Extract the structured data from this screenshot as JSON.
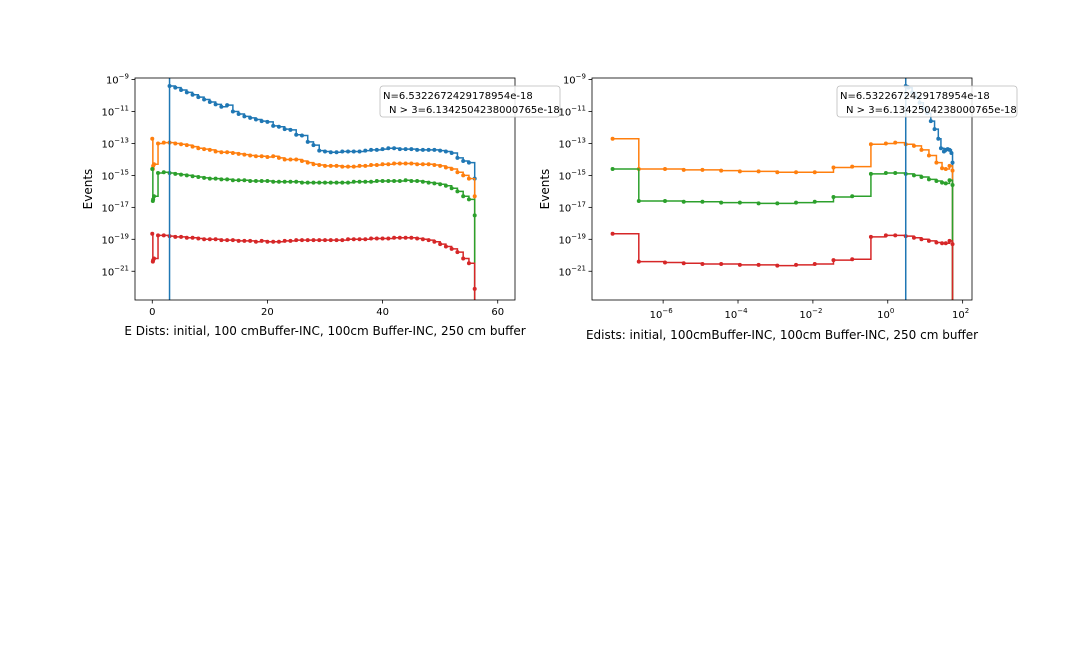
{
  "colors": {
    "blue": "#1f77b4",
    "orange": "#ff7f0e",
    "green": "#2ca02c",
    "red": "#d62728"
  },
  "chart_data": [
    {
      "type": "line",
      "xscale": "linear",
      "yscale": "log",
      "xlabel": "E Dists: initial, 100 cmBuffer-INC, 100cm Buffer-INC, 250 cm buffer",
      "ylabel": "Events",
      "xlim": [
        -3,
        63
      ],
      "ylim_exp": [
        -22.8,
        -8.9
      ],
      "xticks": [
        {
          "v": 0,
          "label": "0"
        },
        {
          "v": 20,
          "label": "20"
        },
        {
          "v": 40,
          "label": "40"
        },
        {
          "v": 60,
          "label": "60"
        }
      ],
      "yticks_exp": [
        -9,
        -11,
        -13,
        -15,
        -17,
        -19,
        -21
      ],
      "vline_x": 3,
      "legend": {
        "line1": "N=6.5322672429178954e-18",
        "line2": "N > 3=6.1342504238000765e-18",
        "placement": "top-right"
      },
      "series": [
        {
          "name": "initial",
          "color": "blue",
          "x": [
            3,
            4,
            5,
            6,
            7,
            8,
            9,
            10,
            11,
            12,
            13,
            14,
            15,
            16,
            17,
            18,
            19,
            20,
            21,
            22,
            23,
            24,
            25,
            26,
            27,
            28,
            29,
            30,
            31,
            32,
            33,
            34,
            35,
            36,
            37,
            38,
            39,
            40,
            41,
            42,
            43,
            44,
            45,
            46,
            47,
            48,
            49,
            50,
            51,
            52,
            53,
            54,
            55,
            56
          ],
          "logy": [
            -9.4,
            -9.5,
            -9.65,
            -9.8,
            -9.95,
            -10.1,
            -10.25,
            -10.4,
            -10.55,
            -10.7,
            -10.6,
            -11.0,
            -11.15,
            -11.3,
            -11.4,
            -11.5,
            -11.6,
            -11.65,
            -11.9,
            -11.95,
            -12.1,
            -12.15,
            -12.45,
            -12.5,
            -12.9,
            -13.1,
            -13.45,
            -13.5,
            -13.55,
            -13.55,
            -13.5,
            -13.5,
            -13.5,
            -13.5,
            -13.45,
            -13.4,
            -13.4,
            -13.35,
            -13.3,
            -13.3,
            -13.35,
            -13.35,
            -13.35,
            -13.4,
            -13.4,
            -13.4,
            -13.4,
            -13.45,
            -13.5,
            -13.6,
            -13.9,
            -14.1,
            -14.2,
            -15.2
          ]
        },
        {
          "name": "100 cmBuffer-INC",
          "color": "orange",
          "x": [
            0,
            0.1,
            0.15,
            0.3,
            1,
            2,
            3,
            4,
            5,
            6,
            7,
            8,
            9,
            10,
            11,
            12,
            13,
            14,
            15,
            16,
            17,
            18,
            19,
            20,
            21,
            22,
            23,
            24,
            25,
            26,
            27,
            28,
            29,
            30,
            31,
            32,
            33,
            34,
            35,
            36,
            37,
            38,
            39,
            40,
            41,
            42,
            43,
            44,
            45,
            46,
            47,
            48,
            49,
            50,
            51,
            52,
            53,
            54,
            55,
            56
          ],
          "logy": [
            -12.7,
            -14.6,
            -14.4,
            -14.3,
            -13.0,
            -12.95,
            -12.95,
            -13.0,
            -13.05,
            -13.1,
            -13.2,
            -13.3,
            -13.35,
            -13.4,
            -13.5,
            -13.55,
            -13.55,
            -13.6,
            -13.65,
            -13.7,
            -13.75,
            -13.8,
            -13.8,
            -13.85,
            -13.8,
            -13.9,
            -14.0,
            -14.0,
            -14.0,
            -14.1,
            -14.2,
            -14.3,
            -14.35,
            -14.4,
            -14.4,
            -14.4,
            -14.45,
            -14.45,
            -14.45,
            -14.4,
            -14.4,
            -14.35,
            -14.35,
            -14.3,
            -14.3,
            -14.25,
            -14.25,
            -14.25,
            -14.25,
            -14.3,
            -14.3,
            -14.3,
            -14.35,
            -14.4,
            -14.5,
            -14.6,
            -14.8,
            -15.0,
            -15.2,
            -16.3
          ]
        },
        {
          "name": "100cm Buffer-INC",
          "color": "green",
          "x": [
            0,
            0.1,
            0.15,
            0.3,
            1,
            2,
            3,
            4,
            5,
            6,
            7,
            8,
            9,
            10,
            11,
            12,
            13,
            14,
            15,
            16,
            17,
            18,
            19,
            20,
            21,
            22,
            23,
            24,
            25,
            26,
            27,
            28,
            29,
            30,
            31,
            32,
            33,
            34,
            35,
            36,
            37,
            38,
            39,
            40,
            41,
            42,
            43,
            44,
            45,
            46,
            47,
            48,
            49,
            50,
            51,
            52,
            53,
            54,
            55,
            56
          ],
          "logy": [
            -14.6,
            -16.6,
            -16.5,
            -16.3,
            -14.85,
            -14.8,
            -14.85,
            -14.9,
            -14.95,
            -15.0,
            -15.05,
            -15.1,
            -15.15,
            -15.2,
            -15.2,
            -15.25,
            -15.25,
            -15.3,
            -15.3,
            -15.3,
            -15.35,
            -15.35,
            -15.35,
            -15.35,
            -15.4,
            -15.4,
            -15.4,
            -15.4,
            -15.4,
            -15.45,
            -15.45,
            -15.45,
            -15.45,
            -15.45,
            -15.45,
            -15.45,
            -15.45,
            -15.45,
            -15.4,
            -15.4,
            -15.4,
            -15.4,
            -15.35,
            -15.35,
            -15.35,
            -15.35,
            -15.35,
            -15.3,
            -15.35,
            -15.35,
            -15.4,
            -15.45,
            -15.5,
            -15.55,
            -15.65,
            -15.8,
            -16.0,
            -16.3,
            -16.5,
            -17.5
          ]
        },
        {
          "name": "250 cm buffer",
          "color": "red",
          "x": [
            0,
            0.1,
            0.15,
            0.3,
            1,
            2,
            3,
            4,
            5,
            6,
            7,
            8,
            9,
            10,
            11,
            12,
            13,
            14,
            15,
            16,
            17,
            18,
            19,
            20,
            21,
            22,
            23,
            24,
            25,
            26,
            27,
            28,
            29,
            30,
            31,
            32,
            33,
            34,
            35,
            36,
            37,
            38,
            39,
            40,
            41,
            42,
            43,
            44,
            45,
            46,
            47,
            48,
            49,
            50,
            51,
            52,
            53,
            54,
            55,
            56
          ],
          "logy": [
            -18.65,
            -20.4,
            -20.3,
            -20.2,
            -18.75,
            -18.75,
            -18.8,
            -18.85,
            -18.85,
            -18.9,
            -18.9,
            -18.95,
            -19.0,
            -19.0,
            -19.0,
            -19.05,
            -19.05,
            -19.05,
            -19.1,
            -19.1,
            -19.1,
            -19.15,
            -19.1,
            -19.15,
            -19.15,
            -19.15,
            -19.1,
            -19.1,
            -19.05,
            -19.05,
            -19.05,
            -19.05,
            -19.05,
            -19.05,
            -19.05,
            -19.05,
            -19.05,
            -19.0,
            -19.0,
            -19.0,
            -19.0,
            -18.95,
            -18.95,
            -18.95,
            -18.95,
            -18.9,
            -18.9,
            -18.9,
            -18.9,
            -18.95,
            -19.0,
            -19.05,
            -19.15,
            -19.3,
            -19.45,
            -19.6,
            -19.8,
            -20.2,
            -20.5,
            -22.1
          ]
        }
      ]
    },
    {
      "type": "line",
      "xscale": "log",
      "yscale": "log",
      "xlabel": "Edists: initial, 100cmBuffer-INC, 100cm Buffer-INC, 250 cm buffer",
      "ylabel": "Events",
      "xlim_exp": [
        -7.9,
        2.25
      ],
      "ylim_exp": [
        -22.8,
        -8.9
      ],
      "xticks_exp": [
        {
          "e": -6,
          "label": "10−6"
        },
        {
          "e": -4,
          "label": "10−4"
        },
        {
          "e": -2,
          "label": "10−2"
        },
        {
          "e": 0,
          "label": "100"
        },
        {
          "e": 2,
          "label": "102"
        }
      ],
      "yticks_exp": [
        -9,
        -11,
        -13,
        -15,
        -17,
        -19,
        -21
      ],
      "vline_logx": 0.48,
      "legend": {
        "line1": "N=6.5322672429178954e-18",
        "line2": "N > 3=6.1342504238000765e-18",
        "placement": "top-right"
      },
      "series": [
        {
          "name": "initial",
          "color": "blue",
          "logx": [
            0.48,
            0.55,
            0.65,
            0.75,
            0.85,
            0.95,
            1.05,
            1.15,
            1.25,
            1.35,
            1.42,
            1.5,
            1.55,
            1.6,
            1.65,
            1.7,
            1.73
          ],
          "logy": [
            -9.4,
            -9.5,
            -9.8,
            -10.1,
            -10.45,
            -10.8,
            -11.1,
            -11.6,
            -12.1,
            -12.7,
            -13.3,
            -13.5,
            -13.4,
            -13.35,
            -13.4,
            -13.6,
            -14.2
          ]
        },
        {
          "name": "100 cmBuffer-INC",
          "color": "orange",
          "logx": [
            -7.35,
            -6.65,
            -5.95,
            -5.45,
            -4.95,
            -4.45,
            -3.95,
            -3.45,
            -2.95,
            -2.45,
            -1.95,
            -1.45,
            -0.95,
            -0.45,
            -0.05,
            0.2,
            0.48,
            0.7,
            0.9,
            1.1,
            1.3,
            1.45,
            1.55,
            1.65,
            1.73
          ],
          "logy": [
            -12.7,
            -14.6,
            -14.6,
            -14.65,
            -14.65,
            -14.7,
            -14.75,
            -14.75,
            -14.8,
            -14.8,
            -14.8,
            -14.5,
            -14.45,
            -13.05,
            -13.0,
            -12.95,
            -13.05,
            -13.15,
            -13.4,
            -13.75,
            -14.2,
            -14.55,
            -14.6,
            -14.4,
            -14.7
          ]
        },
        {
          "name": "100cm Buffer-INC",
          "color": "green",
          "logx": [
            -7.35,
            -6.65,
            -5.95,
            -5.45,
            -4.95,
            -4.45,
            -3.95,
            -3.45,
            -2.95,
            -2.45,
            -1.95,
            -1.45,
            -0.95,
            -0.45,
            -0.05,
            0.2,
            0.48,
            0.7,
            0.9,
            1.1,
            1.3,
            1.45,
            1.55,
            1.65,
            1.73
          ],
          "logy": [
            -14.6,
            -16.6,
            -16.6,
            -16.65,
            -16.65,
            -16.7,
            -16.7,
            -16.75,
            -16.75,
            -16.7,
            -16.65,
            -16.35,
            -16.3,
            -14.9,
            -14.85,
            -14.85,
            -14.9,
            -15.0,
            -15.1,
            -15.25,
            -15.35,
            -15.45,
            -15.5,
            -15.3,
            -15.6
          ]
        },
        {
          "name": "250 cm buffer",
          "color": "red",
          "logx": [
            -7.35,
            -6.65,
            -5.95,
            -5.45,
            -4.95,
            -4.45,
            -3.95,
            -3.45,
            -2.95,
            -2.45,
            -1.95,
            -1.45,
            -0.95,
            -0.45,
            -0.05,
            0.2,
            0.48,
            0.7,
            0.9,
            1.1,
            1.3,
            1.45,
            1.55,
            1.65,
            1.73
          ],
          "logy": [
            -18.65,
            -20.4,
            -20.45,
            -20.5,
            -20.55,
            -20.55,
            -20.6,
            -20.6,
            -20.65,
            -20.6,
            -20.55,
            -20.3,
            -20.25,
            -18.85,
            -18.75,
            -18.75,
            -18.8,
            -18.9,
            -19.0,
            -19.1,
            -19.2,
            -19.25,
            -19.25,
            -19.1,
            -19.3
          ]
        }
      ]
    }
  ]
}
